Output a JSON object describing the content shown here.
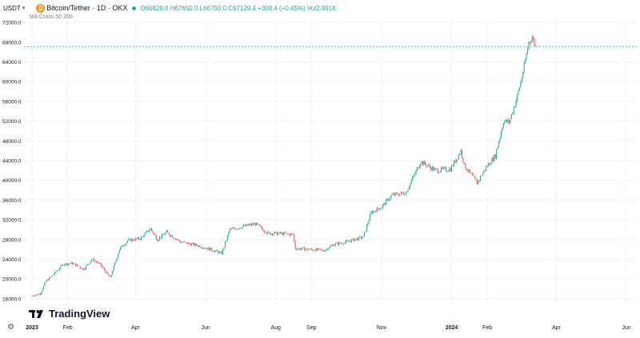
{
  "header": {
    "currency": "USDT",
    "symbol": "Bitcoin/Tether · 1D · OKX",
    "ohlc": "O66829.0 H67650.0 L66750.0 C67129.4 +300.4 (+0.45%) Vol2.991K",
    "indicator": "MA Cross 50 200"
  },
  "watermark": "TradingView",
  "icons": {
    "coin": "bitcoin-icon",
    "settings": "gear-icon",
    "logo": "tradingview-logo-icon"
  },
  "colors": {
    "up": "#26a69a",
    "down": "#ef5350",
    "grid": "#f0f3fa",
    "price_line": "#26a69a"
  },
  "chart_data": {
    "type": "candlestick",
    "y_ticks": [
      "16000.0",
      "20000.0",
      "24000.0",
      "28000.0",
      "32000.0",
      "36000.0",
      "40000.0",
      "44000.0",
      "48000.0",
      "52000.0",
      "56000.0",
      "60000.0",
      "64000.0",
      "68000.0",
      "72000.0"
    ],
    "ylim": [
      15000,
      73000
    ],
    "x_ticks": [
      {
        "label": "2023",
        "date": "2023-01-01"
      },
      {
        "label": "Feb",
        "date": "2023-02-01"
      },
      {
        "label": "Apr",
        "date": "2023-04-01"
      },
      {
        "label": "Jun",
        "date": "2023-06-01"
      },
      {
        "label": "Aug",
        "date": "2023-08-01"
      },
      {
        "label": "Sep",
        "date": "2023-09-01"
      },
      {
        "label": "Nov",
        "date": "2023-11-01"
      },
      {
        "label": "2024",
        "date": "2024-01-01"
      },
      {
        "label": "Feb",
        "date": "2024-02-01"
      },
      {
        "label": "Apr",
        "date": "2024-04-01"
      },
      {
        "label": "Jun",
        "date": "2024-06-01"
      }
    ],
    "xlim": [
      "2022-12-25",
      "2024-06-10"
    ],
    "last_price": 67129.4,
    "price_path": [
      [
        "2023-01-01",
        16600
      ],
      [
        "2023-01-08",
        17000
      ],
      [
        "2023-01-13",
        19500
      ],
      [
        "2023-01-20",
        21000
      ],
      [
        "2023-01-28",
        23000
      ],
      [
        "2023-02-05",
        23200
      ],
      [
        "2023-02-15",
        22000
      ],
      [
        "2023-02-22",
        24000
      ],
      [
        "2023-03-01",
        23000
      ],
      [
        "2023-03-10",
        20200
      ],
      [
        "2023-03-18",
        26000
      ],
      [
        "2023-03-25",
        27800
      ],
      [
        "2023-04-05",
        28200
      ],
      [
        "2023-04-14",
        30200
      ],
      [
        "2023-04-20",
        28000
      ],
      [
        "2023-04-28",
        29500
      ],
      [
        "2023-05-10",
        27500
      ],
      [
        "2023-05-25",
        26800
      ],
      [
        "2023-06-05",
        26000
      ],
      [
        "2023-06-15",
        25200
      ],
      [
        "2023-06-22",
        30000
      ],
      [
        "2023-07-01",
        30500
      ],
      [
        "2023-07-14",
        31200
      ],
      [
        "2023-07-25",
        29300
      ],
      [
        "2023-08-05",
        29200
      ],
      [
        "2023-08-16",
        29000
      ],
      [
        "2023-08-18",
        26200
      ],
      [
        "2023-08-30",
        26000
      ],
      [
        "2023-09-12",
        25800
      ],
      [
        "2023-09-20",
        27000
      ],
      [
        "2023-10-01",
        27500
      ],
      [
        "2023-10-16",
        28500
      ],
      [
        "2023-10-23",
        33500
      ],
      [
        "2023-11-01",
        34600
      ],
      [
        "2023-11-10",
        37000
      ],
      [
        "2023-11-22",
        37500
      ],
      [
        "2023-12-05",
        43800
      ],
      [
        "2023-12-18",
        42000
      ],
      [
        "2023-12-31",
        42300
      ],
      [
        "2024-01-09",
        46000
      ],
      [
        "2024-01-12",
        43000
      ],
      [
        "2024-01-23",
        39500
      ],
      [
        "2024-02-01",
        43000
      ],
      [
        "2024-02-08",
        45000
      ],
      [
        "2024-02-15",
        52000
      ],
      [
        "2024-02-20",
        51800
      ],
      [
        "2024-02-27",
        57000
      ],
      [
        "2024-03-04",
        63000
      ],
      [
        "2024-03-08",
        68000
      ],
      [
        "2024-03-11",
        69000
      ],
      [
        "2024-03-14",
        67200
      ]
    ]
  }
}
